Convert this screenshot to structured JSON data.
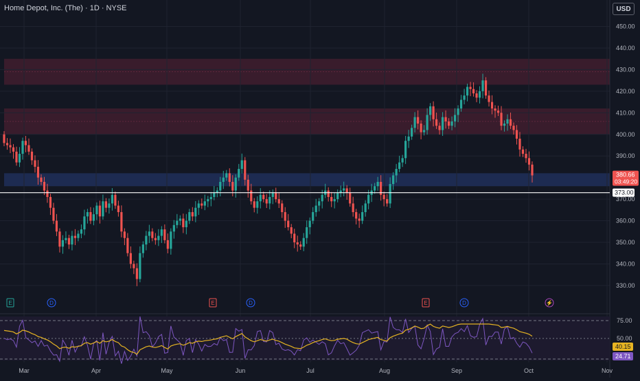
{
  "header": {
    "title": "Home Depot, Inc. (The) · 1D · NYSE",
    "currency_button": "USD"
  },
  "colors": {
    "bg": "#131722",
    "up": "#26a69a",
    "down": "#ef5350",
    "grid": "#1f2330",
    "resistance_zone": "#5a2035",
    "support_zone": "#1f2d57",
    "rsi_line": "#7e57c2",
    "rsi_ma": "#e6b422"
  },
  "price_axis": {
    "ticks": [
      450,
      440,
      430,
      420,
      410,
      400,
      390,
      370,
      360,
      350,
      340,
      330
    ],
    "current_price": "380.66",
    "countdown": "03:49:20",
    "level_label": "373.00"
  },
  "time_axis": {
    "labels": [
      "Mar",
      "Apr",
      "May",
      "Jun",
      "Jul",
      "Aug",
      "Sep",
      "Oct",
      "Nov"
    ]
  },
  "zones": [
    {
      "type": "resistance",
      "from": 423,
      "to": 435
    },
    {
      "type": "resistance",
      "from": 400,
      "to": 412
    },
    {
      "type": "support",
      "from": 376,
      "to": 382
    }
  ],
  "horizontal_line": 373,
  "events": [
    "E",
    "D",
    "E",
    "D",
    "E",
    "D",
    "⚡"
  ],
  "rsi": {
    "levels": [
      "75.00",
      "50.00"
    ],
    "ma_value": "40.15",
    "rsi_value": "24.71"
  },
  "chart_data": {
    "type": "candlestick",
    "symbol": "HD",
    "closes": [
      396,
      395,
      394,
      392,
      387,
      391,
      397,
      395,
      392,
      388,
      385,
      380,
      378,
      374,
      371,
      366,
      360,
      355,
      348,
      351,
      352,
      349,
      353,
      352,
      354,
      356,
      362,
      364,
      360,
      363,
      367,
      362,
      369,
      366,
      368,
      372,
      367,
      364,
      355,
      352,
      345,
      340,
      338,
      333,
      345,
      349,
      353,
      355,
      352,
      351,
      353,
      356,
      351,
      347,
      355,
      358,
      360,
      361,
      357,
      360,
      364,
      362,
      366,
      368,
      367,
      369,
      370,
      371,
      373,
      374,
      378,
      380,
      382,
      378,
      374,
      380,
      384,
      388,
      379,
      374,
      369,
      366,
      369,
      372,
      370,
      368,
      371,
      373,
      370,
      368,
      364,
      360,
      357,
      354,
      350,
      349,
      348,
      352,
      357,
      360,
      364,
      367,
      369,
      372,
      374,
      371,
      369,
      370,
      373,
      374,
      375,
      373,
      368,
      364,
      361,
      360,
      364,
      368,
      372,
      374,
      376,
      378,
      372,
      370,
      368,
      377,
      381,
      384,
      387,
      389,
      397,
      399,
      403,
      408,
      405,
      401,
      402,
      409,
      413,
      407,
      404,
      402,
      408,
      406,
      404,
      406,
      409,
      412,
      416,
      418,
      422,
      421,
      419,
      417,
      420,
      425,
      418,
      415,
      412,
      411,
      410,
      404,
      405,
      407,
      404,
      402,
      398,
      393,
      391,
      389,
      386,
      381
    ]
  }
}
